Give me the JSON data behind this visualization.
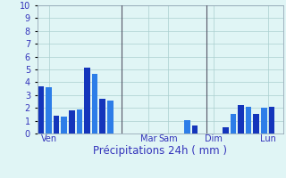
{
  "bars": [
    {
      "x": 0,
      "height": 3.7
    },
    {
      "x": 1,
      "height": 3.6
    },
    {
      "x": 2,
      "height": 1.4
    },
    {
      "x": 3,
      "height": 1.35
    },
    {
      "x": 4,
      "height": 1.8
    },
    {
      "x": 5,
      "height": 1.9
    },
    {
      "x": 6,
      "height": 5.15
    },
    {
      "x": 7,
      "height": 4.65
    },
    {
      "x": 8,
      "height": 2.7
    },
    {
      "x": 9,
      "height": 2.6
    },
    {
      "x": 10,
      "height": 0.0
    },
    {
      "x": 11,
      "height": 0.0
    },
    {
      "x": 12,
      "height": 0.0
    },
    {
      "x": 13,
      "height": 0.0
    },
    {
      "x": 14,
      "height": 0.0
    },
    {
      "x": 15,
      "height": 0.0
    },
    {
      "x": 16,
      "height": 0.0
    },
    {
      "x": 17,
      "height": 0.0
    },
    {
      "x": 18,
      "height": 0.0
    },
    {
      "x": 19,
      "height": 1.05
    },
    {
      "x": 20,
      "height": 0.6
    },
    {
      "x": 21,
      "height": 0.0
    },
    {
      "x": 22,
      "height": 0.0
    },
    {
      "x": 23,
      "height": 0.0
    },
    {
      "x": 24,
      "height": 0.5
    },
    {
      "x": 25,
      "height": 1.5
    },
    {
      "x": 26,
      "height": 2.2
    },
    {
      "x": 27,
      "height": 2.1
    },
    {
      "x": 28,
      "height": 1.5
    },
    {
      "x": 29,
      "height": 2.0
    },
    {
      "x": 30,
      "height": 2.05
    },
    {
      "x": 31,
      "height": 0.0
    }
  ],
  "bar_color_dark": "#1435bb",
  "bar_color_light": "#2d7de8",
  "background_color": "#e0f5f5",
  "grid_color": "#aacfcf",
  "text_color": "#3333bb",
  "xlabel": "Précipitations 24h ( mm )",
  "ylim": [
    0,
    10
  ],
  "yticks": [
    0,
    1,
    2,
    3,
    4,
    5,
    6,
    7,
    8,
    9,
    10
  ],
  "xlim": [
    -0.5,
    31.5
  ],
  "day_labels": [
    {
      "x": 1.0,
      "label": "Ven"
    },
    {
      "x": 14.0,
      "label": "Mar"
    },
    {
      "x": 16.5,
      "label": "Sam"
    },
    {
      "x": 22.5,
      "label": "Dim"
    },
    {
      "x": 29.5,
      "label": "Lun"
    }
  ],
  "vlines_x": [
    10.5,
    21.5
  ],
  "tick_fontsize": 7,
  "xlabel_fontsize": 8.5
}
